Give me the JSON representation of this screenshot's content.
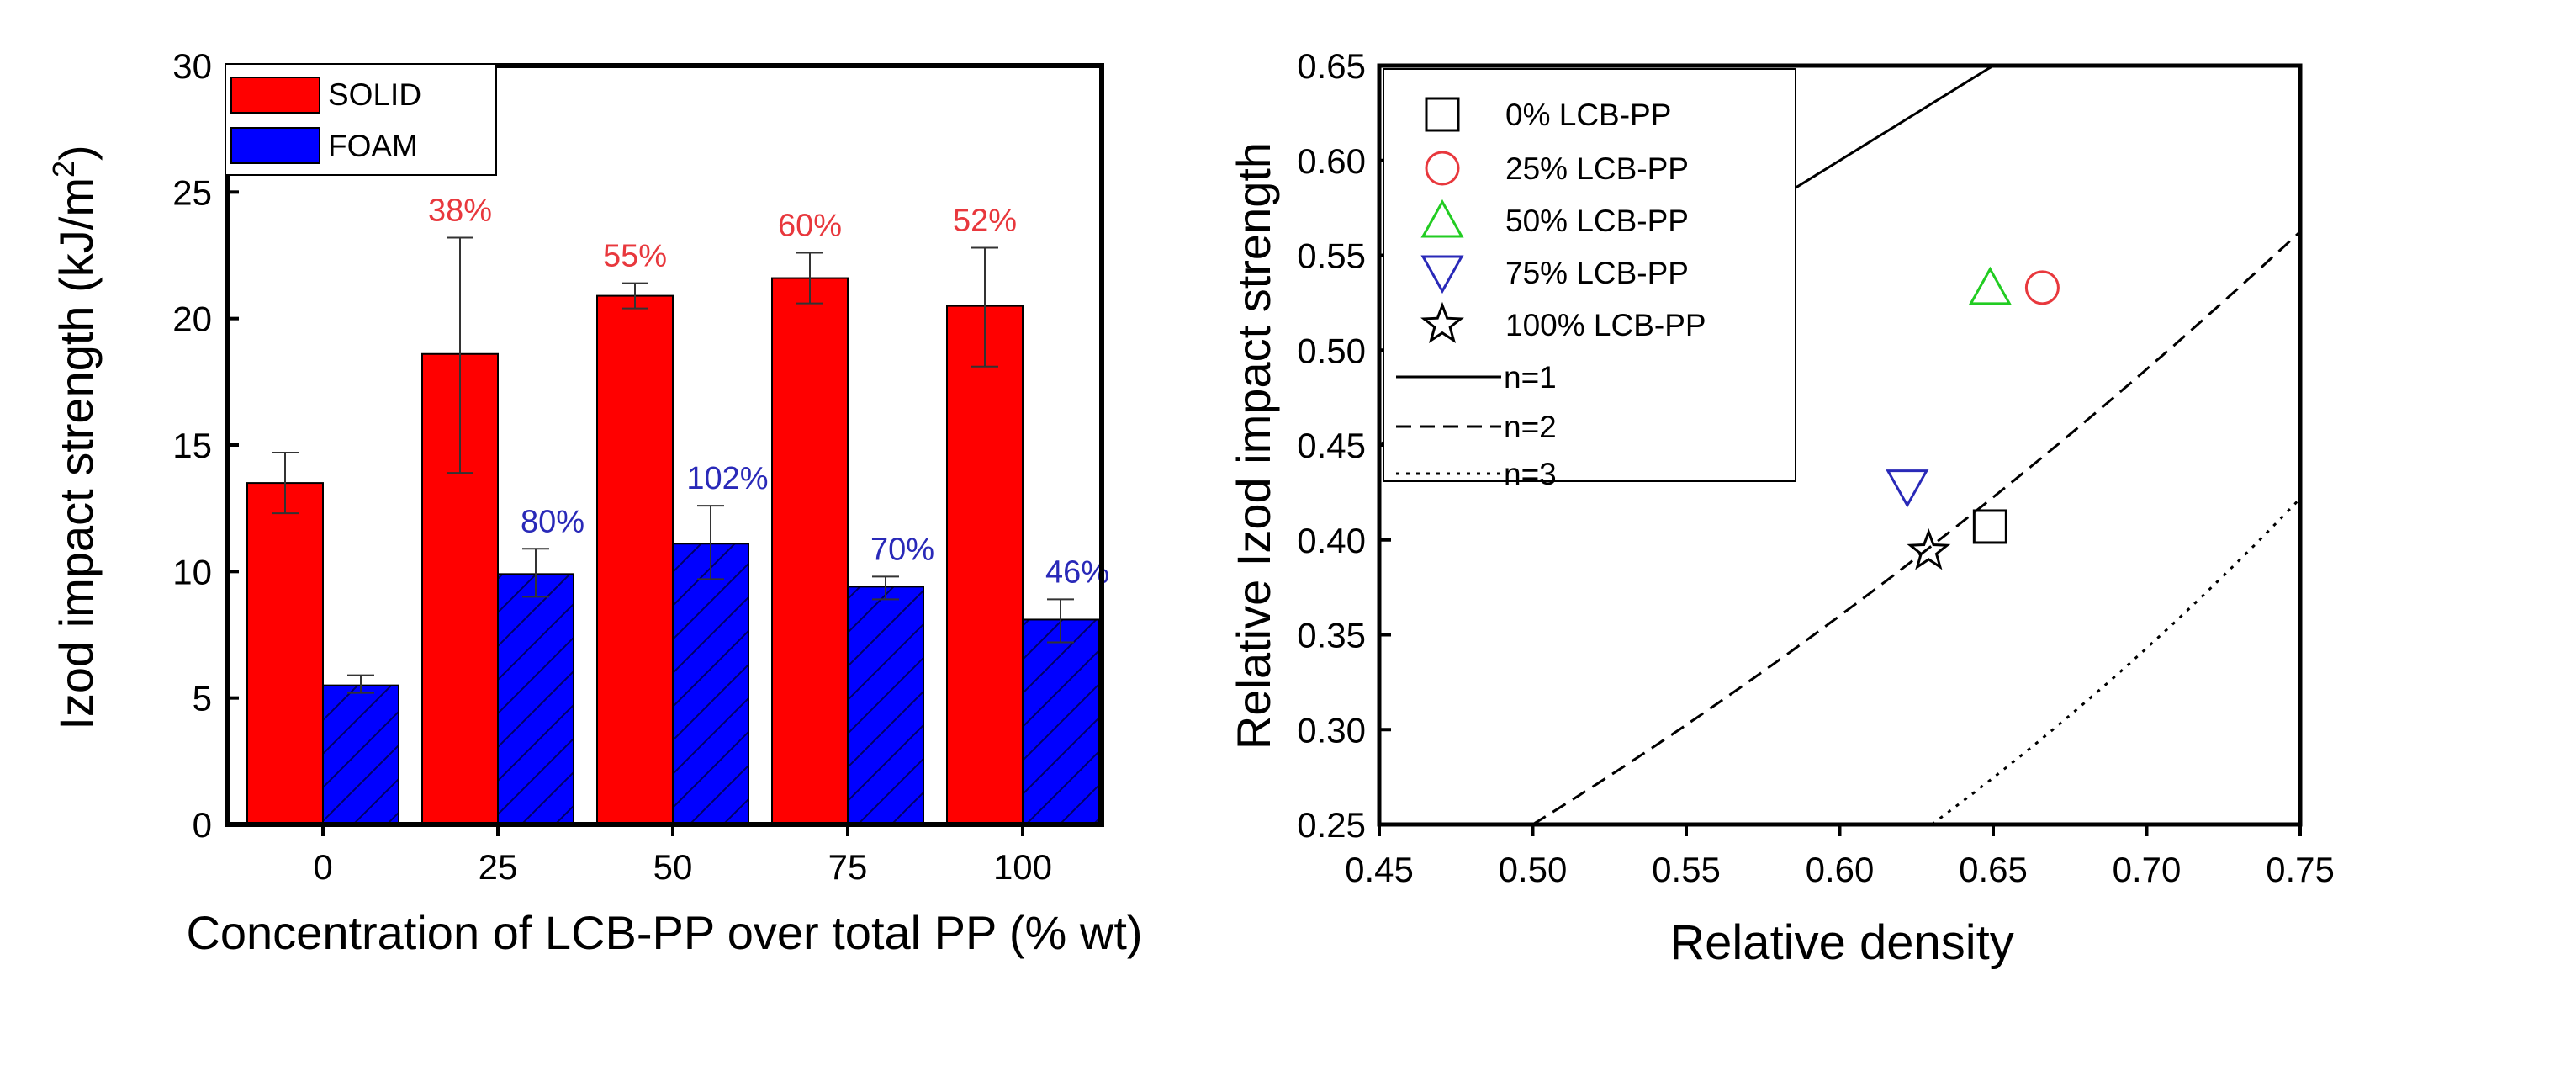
{
  "chart_data": [
    {
      "type": "bar",
      "title": "",
      "xlabel": "Concentration of LCB-PP over total PP (% wt)",
      "ylabel_main": "Izod impact strength (kJ/m",
      "ylabel_sup": "2",
      "ylabel_close": ")",
      "ylim": [
        0,
        30
      ],
      "yticks": [
        "0",
        "5",
        "10",
        "15",
        "20",
        "25",
        "30"
      ],
      "categories": [
        "0",
        "25",
        "50",
        "75",
        "100"
      ],
      "legend_position": "top-left",
      "series": [
        {
          "name": "SOLID",
          "color": "#ff0000",
          "values": [
            13.5,
            18.6,
            20.9,
            21.6,
            20.5
          ],
          "err_low": [
            12.3,
            13.9,
            20.4,
            20.6,
            18.1
          ],
          "err_high": [
            14.7,
            23.2,
            21.4,
            22.6,
            22.8
          ],
          "labels": [
            "",
            "38%",
            "55%",
            "60%",
            "52%"
          ],
          "label_color": "#e8383d"
        },
        {
          "name": "FOAM",
          "color": "#0000ff",
          "hatch": "diagonal",
          "values": [
            5.5,
            9.9,
            11.1,
            9.4,
            8.1
          ],
          "err_low": [
            5.2,
            9.0,
            9.7,
            8.9,
            7.2
          ],
          "err_high": [
            5.9,
            10.9,
            12.6,
            9.8,
            8.9
          ],
          "labels": [
            "",
            "80%",
            "102%",
            "70%",
            "46%"
          ],
          "label_color": "#2929b8"
        }
      ]
    },
    {
      "type": "scatter",
      "title": "",
      "xlabel": "Relative density",
      "ylabel": "Relative Izod impact strength",
      "xlim": [
        0.45,
        0.75
      ],
      "ylim": [
        0.25,
        0.65
      ],
      "xticks": [
        "0.45",
        "0.50",
        "0.55",
        "0.60",
        "0.65",
        "0.70",
        "0.75"
      ],
      "yticks": [
        "0.25",
        "0.30",
        "0.35",
        "0.40",
        "0.45",
        "0.50",
        "0.55",
        "0.60",
        "0.65"
      ],
      "legend_position": "top-left",
      "points": [
        {
          "name": "0% LCB-PP",
          "marker": "square",
          "color": "#000000",
          "x": 0.649,
          "y": 0.407
        },
        {
          "name": "25% LCB-PP",
          "marker": "circle",
          "color": "#e8383d",
          "x": 0.666,
          "y": 0.533
        },
        {
          "name": "50% LCB-PP",
          "marker": "triangle-up",
          "color": "#22cc22",
          "x": 0.649,
          "y": 0.533
        },
        {
          "name": "75% LCB-PP",
          "marker": "triangle-down",
          "color": "#2929b8",
          "x": 0.622,
          "y": 0.428
        },
        {
          "name": "100% LCB-PP",
          "marker": "star",
          "color": "#000000",
          "x": 0.629,
          "y": 0.394
        }
      ],
      "lines": [
        {
          "name": "n=1",
          "style": "solid",
          "exponent": 1
        },
        {
          "name": "n=2",
          "style": "dashed",
          "exponent": 2
        },
        {
          "name": "n=3",
          "style": "dotted",
          "exponent": 3
        }
      ]
    }
  ]
}
